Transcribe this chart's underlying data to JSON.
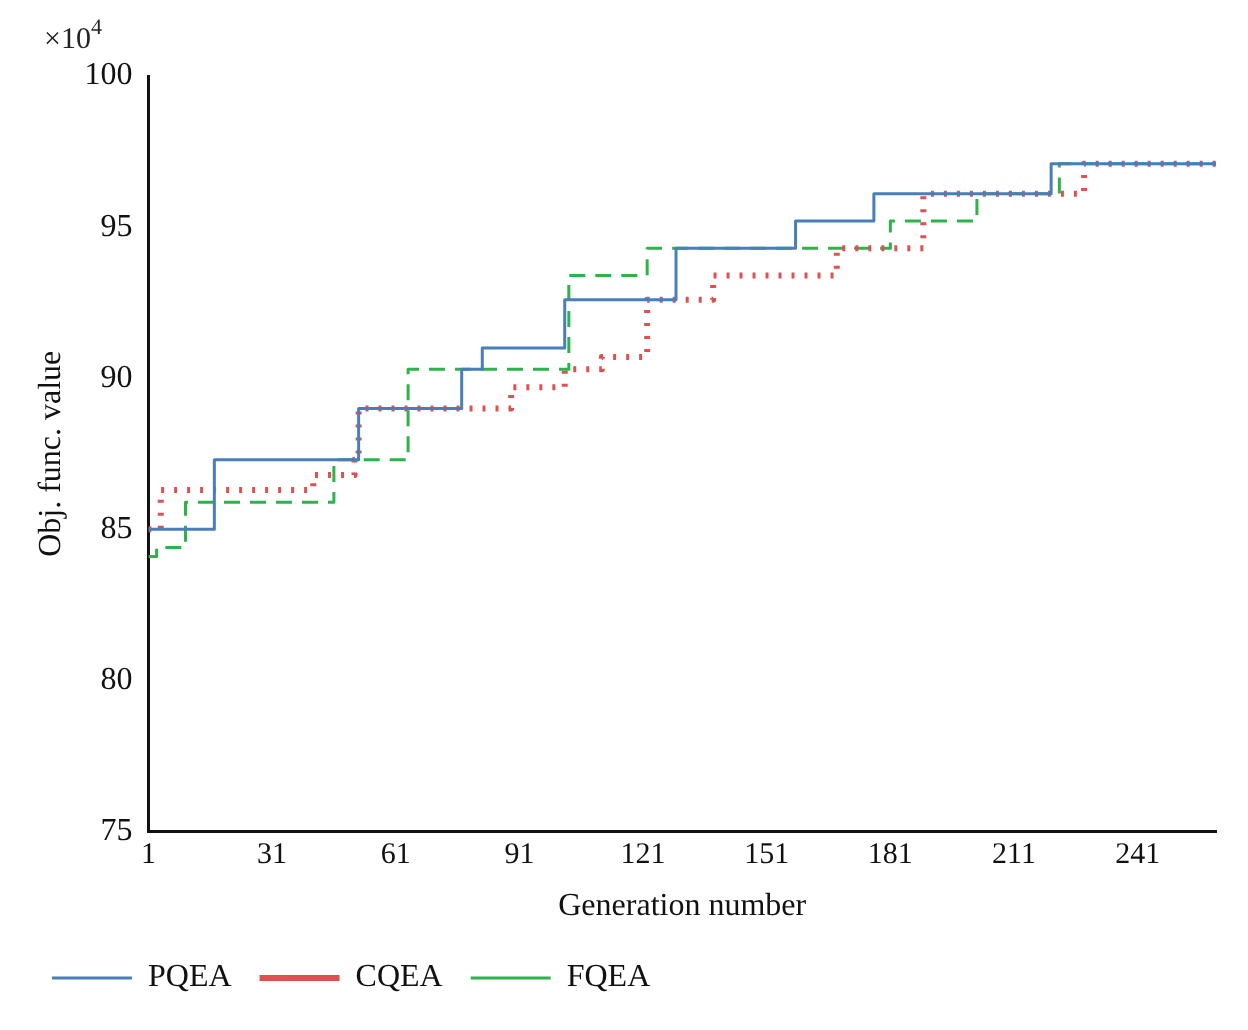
{
  "chart_data": {
    "type": "step",
    "xlabel": "Generation number",
    "ylabel": "Obj. func. value",
    "annotations": [
      "×10$^{4}$"
    ],
    "xlim": [
      1,
      260
    ],
    "xticks": [
      1,
      31,
      61,
      91,
      121,
      151,
      181,
      211,
      241
    ],
    "ylim": [
      75,
      100
    ],
    "yticks": [
      75,
      80,
      85,
      90,
      95,
      100
    ],
    "grid": false,
    "legend": "bottom left",
    "series": [
      {
        "name": "PQEA",
        "color": "#4a7ebb",
        "line_style": "solid",
        "x": [
          1,
          17,
          52,
          77,
          82,
          102,
          129,
          158,
          177,
          220,
          260
        ],
        "values": [
          85.0,
          87.3,
          89.0,
          90.3,
          91.0,
          92.6,
          94.3,
          95.2,
          96.1,
          97.1,
          97.1
        ]
      },
      {
        "name": "CQEA",
        "color": "#e05050",
        "line_style": "dotted",
        "x": [
          1,
          4,
          41,
          51,
          52,
          89,
          102,
          111,
          122,
          138,
          168,
          189,
          228,
          260
        ],
        "values": [
          85.0,
          86.3,
          86.8,
          87.3,
          89.0,
          89.7,
          90.3,
          90.7,
          92.6,
          93.4,
          94.3,
          96.1,
          97.1,
          97.1
        ]
      },
      {
        "name": "FQEA",
        "color": "#2db34a",
        "line_style": "dashed",
        "x": [
          1,
          3,
          10,
          46,
          64,
          103,
          122,
          181,
          202,
          222,
          260
        ],
        "values": [
          84.1,
          84.4,
          85.9,
          87.3,
          90.3,
          93.4,
          94.3,
          95.2,
          96.1,
          97.1,
          97.1
        ]
      }
    ]
  }
}
